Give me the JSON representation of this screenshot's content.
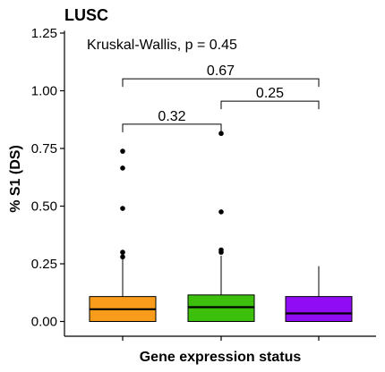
{
  "chart_data": {
    "type": "box",
    "title": "LUSC",
    "xlabel": "Gene expression status",
    "ylabel": "% S1 (DS)",
    "ylim": [
      -0.04,
      1.26
    ],
    "yticks": [
      0.0,
      0.25,
      0.5,
      0.75,
      1.0,
      1.25
    ],
    "ytick_labels": [
      "0.00",
      "0.25",
      "0.50",
      "0.75",
      "1.00",
      "1.25"
    ],
    "xticks_labels_shown": false,
    "legend": "none",
    "test_annotation": "Kruskal-Wallis, p = 0.45",
    "groups": [
      {
        "color": "#F99B1B",
        "q1": 0.0,
        "median": 0.053,
        "q3": 0.108,
        "whisker_low": 0.0,
        "whisker_high": 0.27,
        "outliers": [
          0.28,
          0.3,
          0.49,
          0.665,
          0.738
        ]
      },
      {
        "color": "#3DC00C",
        "q1": 0.0,
        "median": 0.062,
        "q3": 0.115,
        "whisker_low": 0.0,
        "whisker_high": 0.285,
        "outliers": [
          0.3,
          0.31,
          0.475,
          0.815
        ]
      },
      {
        "color": "#8F0CF5",
        "q1": 0.0,
        "median": 0.035,
        "q3": 0.108,
        "whisker_low": 0.0,
        "whisker_high": 0.24,
        "outliers": []
      }
    ],
    "comparisons": [
      {
        "from": 0,
        "to": 1,
        "y": 0.855,
        "label": "0.32"
      },
      {
        "from": 1,
        "to": 2,
        "y": 0.955,
        "label": "0.25"
      },
      {
        "from": 0,
        "to": 2,
        "y": 1.052,
        "label": "0.67"
      }
    ]
  }
}
